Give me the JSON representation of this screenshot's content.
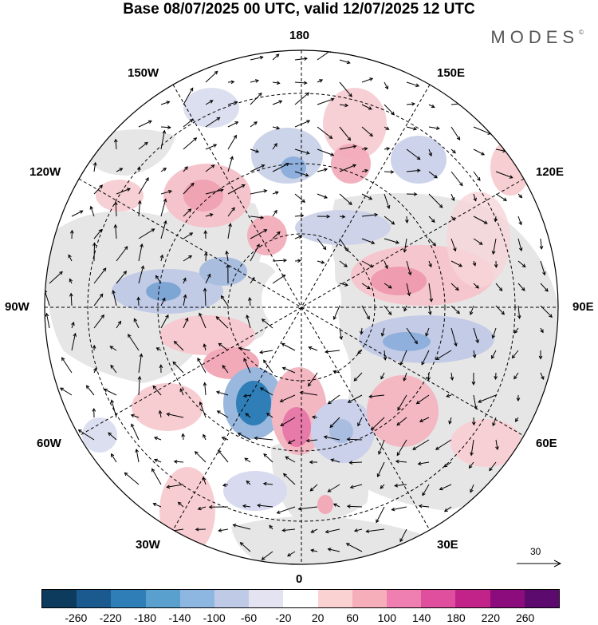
{
  "title": "Base 08/07/2025 00 UTC, valid 12/07/2025 12 UTC",
  "brand": "MODES",
  "brand_mark": "©",
  "longitude_labels": {
    "top": "180",
    "bottom": "0",
    "left": "90W",
    "right": "90E",
    "upper_left_1": "150W",
    "upper_left_2": "120W",
    "upper_right_1": "150E",
    "upper_right_2": "120E",
    "lower_left_1": "60W",
    "lower_left_2": "30W",
    "lower_right_1": "60E",
    "lower_right_2": "30E"
  },
  "reference_vector": {
    "label": "30"
  },
  "colorbar": {
    "colors": [
      "#0c3b5e",
      "#1a5a8f",
      "#2f7eb8",
      "#5aa0cf",
      "#8db7e0",
      "#bfcbe6",
      "#e3e3f1",
      "#ffffff",
      "#fbd2d2",
      "#f6aebb",
      "#ef7fb0",
      "#e04f9e",
      "#c22388",
      "#8c0c7e",
      "#5c0a6e"
    ],
    "tick_labels": [
      "-260",
      "-220",
      "-180",
      "-140",
      "-100",
      "-60",
      "-20",
      "20",
      "60",
      "100",
      "140",
      "180",
      "220",
      "260"
    ]
  },
  "map_colors": {
    "land": "#e8e8e8",
    "ocean": "#f7f7f7",
    "pole_gap": "#ffffff"
  }
}
